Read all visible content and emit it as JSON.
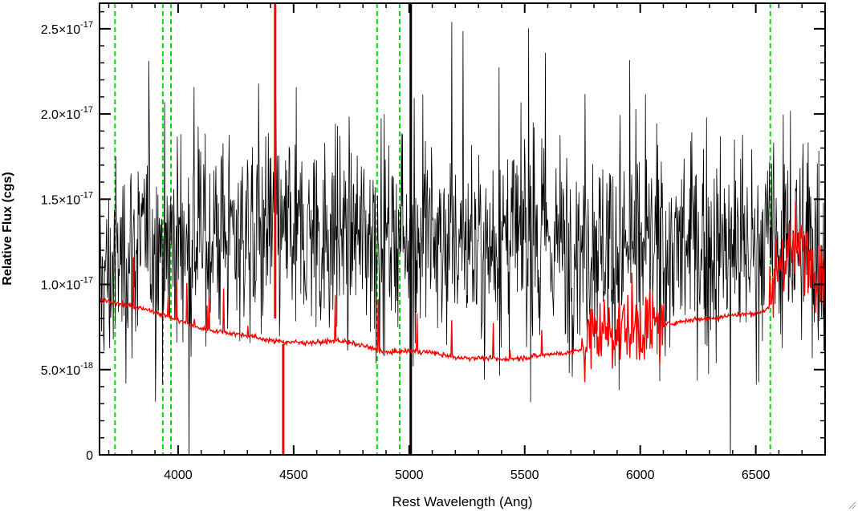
{
  "chart_data": {
    "type": "line",
    "title": "",
    "xlabel": "Rest Wavelength (Ang)",
    "ylabel": "Relative Flux (cgs)",
    "xlim": [
      3660,
      6800
    ],
    "ylim": [
      0,
      2.65e-17
    ],
    "x_ticks": [
      4000,
      4500,
      5000,
      5500,
      6000,
      6500
    ],
    "y_ticks": [
      {
        "value": 0,
        "mantissa": "0",
        "exponent": ""
      },
      {
        "value": 5e-18,
        "mantissa": "5.0×10",
        "exponent": "-18"
      },
      {
        "value": 1e-17,
        "mantissa": "1.0×10",
        "exponent": "-17"
      },
      {
        "value": 1.5e-17,
        "mantissa": "1.5×10",
        "exponent": "-17"
      },
      {
        "value": 2e-17,
        "mantissa": "2.0×10",
        "exponent": "-17"
      },
      {
        "value": 2.5e-17,
        "mantissa": "2.5×10",
        "exponent": "-17"
      }
    ],
    "grid": false,
    "colors": {
      "observed": "#000000",
      "model": "#ff0000",
      "lines": "#00dd00",
      "axes": "#000000"
    },
    "vertical_lines_x": [
      3727,
      3934,
      3969,
      4861,
      4959,
      5007,
      6563
    ],
    "series": [
      {
        "color": "#000000",
        "style": "noisy",
        "x": [
          3660,
          3700,
          3750,
          3800,
          3900,
          4000,
          4200,
          4500,
          4800,
          5000,
          5200,
          5400,
          5600,
          5800,
          6000,
          6200,
          6400,
          6600,
          6800
        ],
        "y": [
          1e-17,
          1.05e-17,
          1.15e-17,
          1.2e-17,
          1.25e-17,
          1.25e-17,
          1.3e-17,
          1.3e-17,
          1.3e-17,
          1.3e-17,
          1.25e-17,
          1.25e-17,
          1.25e-17,
          1.25e-17,
          1.2e-17,
          1.2e-17,
          1.2e-17,
          1.25e-17,
          1.2e-17
        ]
      },
      {
        "color": "#ff0000",
        "style": "model",
        "x": [
          3660,
          3700,
          3800,
          3900,
          4000,
          4100,
          4200,
          4300,
          4400,
          4500,
          4600,
          4700,
          4800,
          4900,
          5000,
          5100,
          5200,
          5300,
          5400,
          5500,
          5600,
          5700,
          5750,
          5800,
          5900,
          6000,
          6100,
          6200,
          6300,
          6400,
          6500,
          6560,
          6600,
          6650,
          6700,
          6800
        ],
        "y": [
          9.1e-18,
          9e-18,
          8.7e-18,
          8.4e-18,
          7.9e-18,
          7.4e-18,
          7.2e-18,
          7e-18,
          6.7e-18,
          6.6e-18,
          6.6e-18,
          6.7e-18,
          6.4e-18,
          6e-18,
          6.1e-18,
          6e-18,
          5.7e-18,
          5.7e-18,
          5.6e-18,
          5.7e-18,
          5.9e-18,
          6e-18,
          6.2e-18,
          7.2e-18,
          7.4e-18,
          7.5e-18,
          7.6e-18,
          7.9e-18,
          8e-18,
          8.2e-18,
          8.3e-18,
          8.6e-18,
          1.15e-17,
          1.2e-17,
          1.2e-17,
          1.1e-17
        ]
      }
    ]
  }
}
